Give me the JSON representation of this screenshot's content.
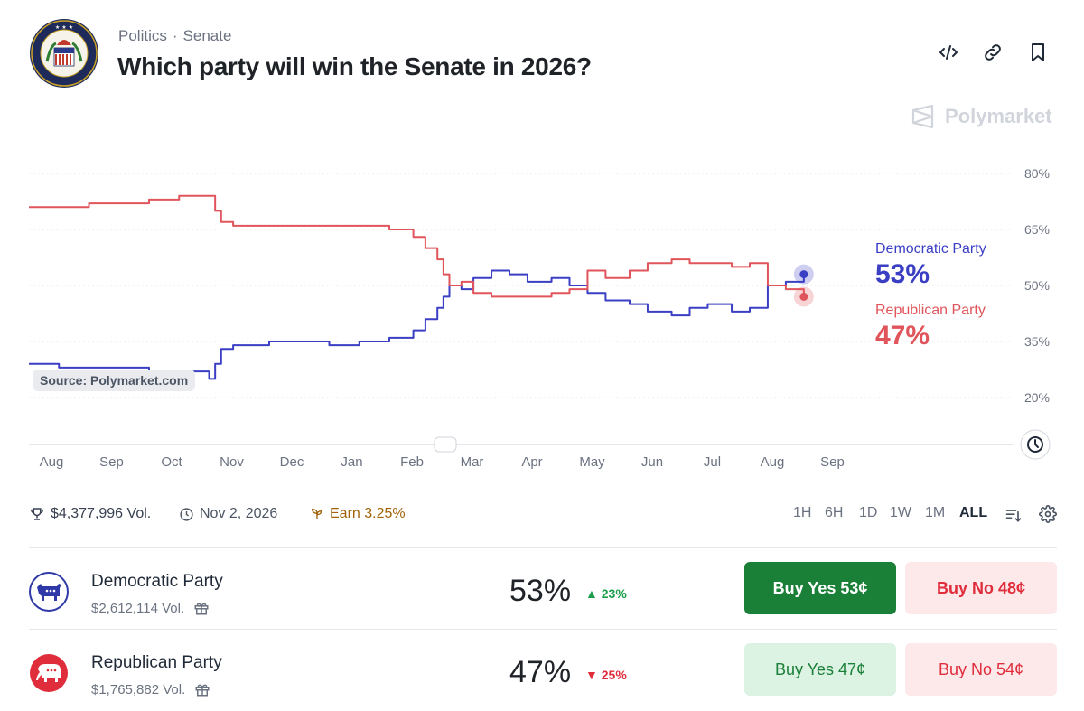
{
  "breadcrumb": {
    "category": "Politics",
    "sep": "·",
    "subcategory": "Senate"
  },
  "market": {
    "title": "Which party will win the Senate in 2026?"
  },
  "brand": {
    "name": "Polymarket"
  },
  "header_icons": [
    "embed-code-icon",
    "link-icon",
    "bookmark-icon"
  ],
  "colors": {
    "democratic": "#3b3fc4",
    "republican": "#e0555b",
    "yes_green": "#1a7f37",
    "no_red": "#e02d3c"
  },
  "chart_data": {
    "type": "line",
    "source_label": "Source: Polymarket.com",
    "ylim": [
      20,
      80
    ],
    "y_ticks": [
      "80%",
      "65%",
      "50%",
      "35%",
      "20%"
    ],
    "x_ticks": [
      "Aug",
      "Sep",
      "Oct",
      "Nov",
      "Dec",
      "Jan",
      "Feb",
      "Mar",
      "Apr",
      "May",
      "Jun",
      "Jul",
      "Aug",
      "Sep"
    ],
    "x": [
      0,
      0.5,
      1,
      1.5,
      2,
      2.5,
      3,
      3.1,
      3.2,
      3.4,
      3.6,
      4,
      4.5,
      5,
      5.5,
      6,
      6.4,
      6.6,
      6.8,
      6.9,
      7.0,
      7.2,
      7.4,
      7.7,
      8,
      8.3,
      8.7,
      9,
      9.3,
      9.6,
      10,
      10.3,
      10.7,
      11,
      11.3,
      11.7,
      12,
      12.3,
      12.6,
      12.9
    ],
    "series": [
      {
        "name": "Democratic Party",
        "values": [
          29,
          28,
          28,
          28,
          27,
          27,
          25,
          29,
          33,
          34,
          34,
          35,
          35,
          34,
          35,
          36,
          38,
          41,
          44,
          47,
          50,
          49,
          52,
          54,
          53,
          51,
          52,
          50,
          48,
          46,
          45,
          43,
          42,
          44,
          45,
          43,
          44,
          50,
          51,
          53
        ]
      },
      {
        "name": "Republican Party",
        "values": [
          71,
          71,
          72,
          72,
          73,
          74,
          74,
          70,
          67,
          66,
          66,
          66,
          66,
          66,
          66,
          65,
          63,
          60,
          57,
          53,
          50,
          51,
          48,
          47,
          47,
          47,
          48,
          49,
          54,
          52,
          54,
          56,
          57,
          56,
          56,
          55,
          56,
          50,
          49,
          47
        ]
      }
    ],
    "legend": [
      {
        "name": "Democratic Party",
        "value": "53%"
      },
      {
        "name": "Republican Party",
        "value": "47%"
      }
    ]
  },
  "stats": {
    "volume": "$4,377,996 Vol.",
    "end_date": "Nov 2, 2026",
    "earn": "Earn 3.25%"
  },
  "ranges": [
    "1H",
    "6H",
    "1D",
    "1W",
    "1M",
    "ALL"
  ],
  "active_range": "ALL",
  "outcomes": [
    {
      "name": "Democratic Party",
      "volume": "$2,612,114 Vol.",
      "probability": "53%",
      "change": "23%",
      "direction": "up",
      "buy_yes": "Buy Yes 53¢",
      "buy_no": "Buy No 48¢"
    },
    {
      "name": "Republican Party",
      "volume": "$1,765,882 Vol.",
      "probability": "47%",
      "change": "25%",
      "direction": "down",
      "buy_yes": "Buy Yes 47¢",
      "buy_no": "Buy No 54¢"
    }
  ]
}
